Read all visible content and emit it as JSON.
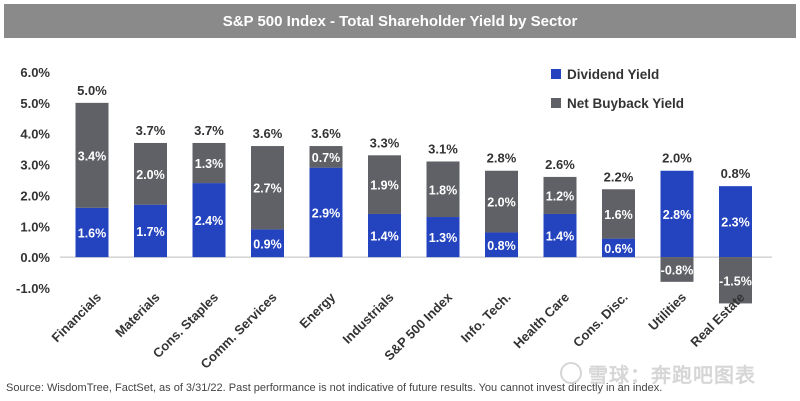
{
  "chart_data": {
    "type": "bar",
    "stacked": true,
    "title": "S&P 500 Index - Total Shareholder Yield by Sector",
    "categories": [
      "Financials",
      "Materials",
      "Cons. Staples",
      "Comm. Services",
      "Energy",
      "Industrials",
      "S&P 500 Index",
      "Info. Tech.",
      "Health Care",
      "Cons. Disc.",
      "Utilities",
      "Real Estate"
    ],
    "series": [
      {
        "name": "Dividend Yield",
        "values": [
          1.6,
          1.7,
          2.4,
          0.9,
          2.9,
          1.4,
          1.3,
          0.8,
          1.4,
          0.6,
          2.8,
          2.3
        ],
        "color": "#2443bf"
      },
      {
        "name": "Net Buyback Yield",
        "values": [
          3.4,
          2.0,
          1.3,
          2.7,
          0.7,
          1.9,
          1.8,
          2.0,
          1.2,
          1.6,
          -0.8,
          -1.5
        ],
        "color": "#5f6166"
      }
    ],
    "totals": [
      5.0,
      3.7,
      3.7,
      3.6,
      3.6,
      3.3,
      3.1,
      2.8,
      2.6,
      2.2,
      2.0,
      0.8
    ],
    "value_format": "%",
    "ylim": [
      -1.0,
      6.0
    ],
    "yticks": [
      "6.0%",
      "5.0%",
      "4.0%",
      "3.0%",
      "2.0%",
      "1.0%",
      "0.0%",
      "-1.0%"
    ],
    "grid": false,
    "legend_position": "right"
  },
  "footer": {
    "source": "Source: WisdomTree, FactSet, as of 3/31/22. Past performance is not indicative of future results. You cannot invest directly in an index."
  },
  "watermark": {
    "text": "雪球：奔跑吧图表"
  }
}
